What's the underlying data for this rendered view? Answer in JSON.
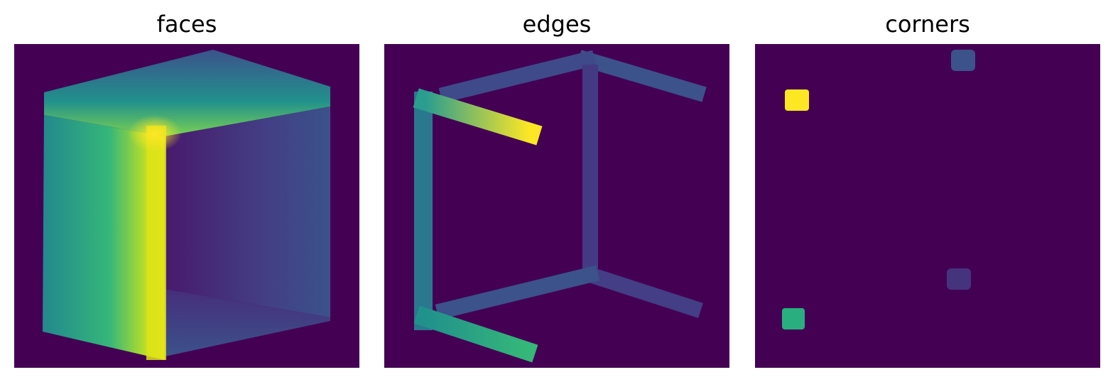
{
  "figure": {
    "colormap": "viridis",
    "background_color": "#440154",
    "panels": [
      {
        "id": "faces",
        "title": "faces"
      },
      {
        "id": "edges",
        "title": "edges"
      },
      {
        "id": "corners",
        "title": "corners"
      }
    ]
  }
}
